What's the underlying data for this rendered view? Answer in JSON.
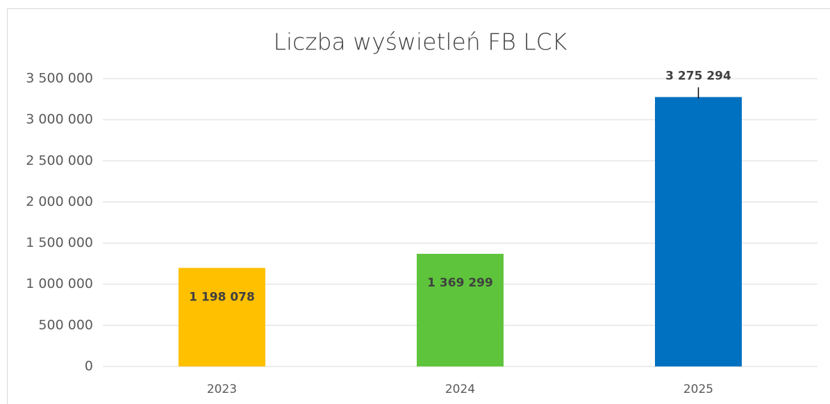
{
  "chart_data": {
    "type": "bar",
    "title": "Liczba wyświetleń FB LCK",
    "categories": [
      "2023",
      "2024",
      "2025"
    ],
    "values": [
      1198078,
      1369299,
      3275294
    ],
    "value_labels": [
      "1 198 078",
      "1 369 299",
      "3 275 294"
    ],
    "colors": [
      "#ffc000",
      "#5ec43b",
      "#0070c0"
    ],
    "ylim": [
      0,
      3500000
    ],
    "yticks": [
      0,
      {
        "value": 500000,
        "label": "500 000"
      },
      {
        "value": 1000000,
        "label": "1 000 000"
      },
      {
        "value": 1500000,
        "label": "1 500 000"
      },
      {
        "value": 2000000,
        "label": "2 000 000"
      },
      {
        "value": 2500000,
        "label": "2 500 000"
      },
      {
        "value": 3000000,
        "label": "3 000 000"
      },
      {
        "value": 3500000,
        "label": "3 500 000"
      }
    ],
    "grid": true
  }
}
